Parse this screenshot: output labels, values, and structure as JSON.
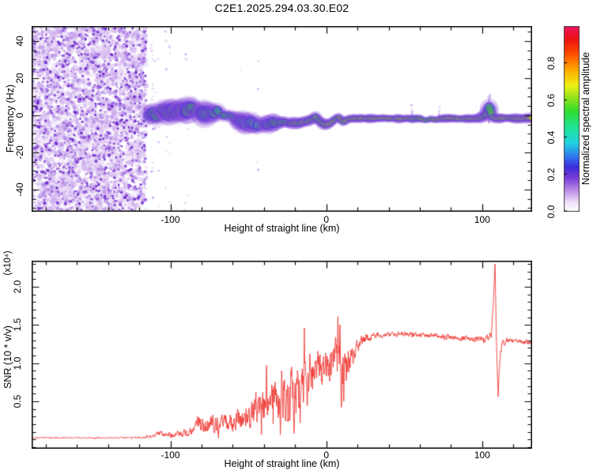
{
  "title": "C2E1.2025.294.03.30.E02",
  "chart_data": [
    {
      "type": "heatmap",
      "title": "C2E1.2025.294.03.30.E02",
      "xlabel": "Height of straight line (km)",
      "ylabel": "Frequency (Hz)",
      "xlim": [
        -189,
        132
      ],
      "ylim": [
        -52,
        48
      ],
      "grid": false,
      "xticks": [
        {
          "v": -100,
          "label": "-100"
        },
        {
          "v": 0,
          "label": "0"
        },
        {
          "v": 100,
          "label": "100"
        }
      ],
      "xminor_step": 20,
      "yticks": [
        {
          "v": -40,
          "label": "-40"
        },
        {
          "v": -20,
          "label": "-20"
        },
        {
          "v": 0,
          "label": "0"
        },
        {
          "v": 20,
          "label": "20"
        },
        {
          "v": 40,
          "label": "40"
        }
      ],
      "yminor_step": 5,
      "colorbar": {
        "label": "Normalized spectral amplitude",
        "range": [
          0,
          1
        ],
        "ticks": [
          {
            "v": 0,
            "label": "0.0"
          },
          {
            "v": 0.2,
            "label": "0.2"
          },
          {
            "v": 0.4,
            "label": "0.4"
          },
          {
            "v": 0.6,
            "label": "0.6"
          },
          {
            "v": 0.8,
            "label": "0.8"
          }
        ],
        "stops": [
          [
            0,
            "#ffffff"
          ],
          [
            0.05,
            "#efe2f9"
          ],
          [
            0.12,
            "#b685e6"
          ],
          [
            0.18,
            "#7a3fd8"
          ],
          [
            0.24,
            "#3b2bdb"
          ],
          [
            0.3,
            "#2f7bf0"
          ],
          [
            0.37,
            "#1fd3e0"
          ],
          [
            0.45,
            "#1fe39b"
          ],
          [
            0.54,
            "#2edc2e"
          ],
          [
            0.62,
            "#9ce41c"
          ],
          [
            0.68,
            "#eef012"
          ],
          [
            0.77,
            "#ffa400"
          ],
          [
            0.85,
            "#ff4c00"
          ],
          [
            0.93,
            "#ee1212"
          ],
          [
            1,
            "#f01264"
          ]
        ]
      },
      "noise": {
        "seed": 7,
        "dense_region": [
          -189,
          -115.5
        ],
        "palette": [
          "#ead9f7",
          "#cbaaec",
          "#a678e2",
          "#8244d6",
          "#5c16c6"
        ],
        "dense_counts": [
          1800,
          1100,
          700
        ],
        "sparse_p": [
          [
            -115,
            0.5
          ],
          [
            -100,
            0.34
          ],
          [
            -85,
            0.18
          ],
          [
            -70,
            0.1
          ],
          [
            -55,
            0.06
          ],
          [
            -40,
            0.04
          ],
          [
            -28,
            0.022
          ],
          [
            -10,
            0.012
          ],
          [
            40,
            0.008
          ],
          [
            60,
            0.05
          ],
          [
            90,
            0.05
          ],
          [
            95,
            0.03
          ],
          [
            112,
            0.03
          ],
          [
            132,
            0.008
          ]
        ]
      },
      "signal": {
        "seed": 11,
        "start_km": -114,
        "blobby_end_km": -30,
        "center": [
          [
            -114,
            -0.5
          ],
          [
            -111,
            1.5
          ],
          [
            -108,
            -0.5
          ],
          [
            -105,
            2.5
          ],
          [
            -102,
            1
          ],
          [
            -99,
            3.5
          ],
          [
            -96,
            1.5
          ],
          [
            -93,
            3.5
          ],
          [
            -90,
            2
          ],
          [
            -87,
            4
          ],
          [
            -84,
            1.5
          ],
          [
            -81,
            3
          ],
          [
            -78,
            1
          ],
          [
            -75,
            2.5
          ],
          [
            -72,
            0.5
          ],
          [
            -69,
            2
          ],
          [
            -66,
            0
          ],
          [
            -63,
            1
          ],
          [
            -60,
            -0.5
          ],
          [
            -57,
            -2
          ],
          [
            -54,
            -3.5
          ],
          [
            -51,
            -4.5
          ],
          [
            -48,
            -3.5
          ],
          [
            -45,
            -5
          ],
          [
            -42,
            -5.5
          ],
          [
            -39,
            -4.5
          ],
          [
            -36,
            -5
          ],
          [
            -33,
            -4
          ],
          [
            -30,
            -4
          ],
          [
            -27,
            -3.5
          ],
          [
            -24,
            -4.5
          ],
          [
            -21,
            -4
          ],
          [
            -18,
            -4.5
          ],
          [
            -15,
            -3.5
          ],
          [
            -12,
            -3
          ],
          [
            -9,
            -2
          ],
          [
            -7,
            -1
          ],
          [
            -4,
            -3.5
          ],
          [
            -1,
            -5
          ],
          [
            2,
            -4.5
          ],
          [
            5,
            -2.5
          ],
          [
            8,
            -1
          ],
          [
            11,
            -3.5
          ],
          [
            14,
            -2
          ],
          [
            18,
            -1.8
          ],
          [
            24,
            -1.8
          ],
          [
            32,
            -1.8
          ],
          [
            42,
            -1.8
          ],
          [
            52,
            -1.9
          ],
          [
            60,
            -2
          ],
          [
            64,
            -2.8
          ],
          [
            67,
            -2
          ],
          [
            70,
            -2.5
          ],
          [
            74,
            -1.8
          ],
          [
            80,
            -1.8
          ],
          [
            88,
            -1.9
          ],
          [
            94,
            -1.8
          ],
          [
            100,
            -1.2
          ],
          [
            103,
            1
          ],
          [
            104.5,
            4.5
          ],
          [
            105.5,
            2
          ],
          [
            106.5,
            -0.8
          ],
          [
            108,
            -1.6
          ],
          [
            114,
            -1.6
          ],
          [
            122,
            -1.6
          ],
          [
            132,
            -1.6
          ]
        ],
        "intensity": [
          [
            -114,
            0.6
          ],
          [
            -108,
            0.66
          ],
          [
            -102,
            0.7
          ],
          [
            -96,
            0.66
          ],
          [
            -90,
            0.7
          ],
          [
            -84,
            0.68
          ],
          [
            -78,
            0.7
          ],
          [
            -72,
            0.64
          ],
          [
            -66,
            0.6
          ],
          [
            -60,
            0.58
          ],
          [
            -54,
            0.55
          ],
          [
            -48,
            0.55
          ],
          [
            -42,
            0.57
          ],
          [
            -36,
            0.6
          ],
          [
            -30,
            0.68
          ],
          [
            -26,
            0.75
          ],
          [
            -22,
            0.82
          ],
          [
            -18,
            0.85
          ],
          [
            -14,
            0.82
          ],
          [
            -10,
            0.8
          ],
          [
            -6,
            0.75
          ],
          [
            -2,
            0.8
          ],
          [
            2,
            0.85
          ],
          [
            6,
            0.8
          ],
          [
            10,
            0.86
          ],
          [
            14,
            0.88
          ],
          [
            20,
            0.9
          ],
          [
            28,
            0.92
          ],
          [
            38,
            0.91
          ],
          [
            48,
            0.9
          ],
          [
            56,
            0.86
          ],
          [
            62,
            0.78
          ],
          [
            66,
            0.72
          ],
          [
            70,
            0.8
          ],
          [
            76,
            0.88
          ],
          [
            84,
            0.9
          ],
          [
            92,
            0.88
          ],
          [
            98,
            0.9
          ],
          [
            102,
            0.78
          ],
          [
            104.5,
            0.62
          ],
          [
            107,
            0.88
          ],
          [
            112,
            0.92
          ],
          [
            120,
            0.9
          ],
          [
            126,
            0.92
          ],
          [
            132,
            0.9
          ]
        ],
        "halfwidth_hz": [
          [
            -114,
            5
          ],
          [
            -105,
            5.8
          ],
          [
            -95,
            6
          ],
          [
            -85,
            5.8
          ],
          [
            -75,
            5.2
          ],
          [
            -65,
            5
          ],
          [
            -55,
            4.6
          ],
          [
            -45,
            4.2
          ],
          [
            -35,
            3.6
          ],
          [
            -28,
            3.2
          ],
          [
            -20,
            3
          ],
          [
            -12,
            3
          ],
          [
            -4,
            3
          ],
          [
            4,
            2.8
          ],
          [
            12,
            2.5
          ],
          [
            25,
            2.3
          ],
          [
            60,
            2.3
          ],
          [
            95,
            2.5
          ],
          [
            102,
            3.2
          ],
          [
            104.5,
            5.5
          ],
          [
            107,
            3
          ],
          [
            112,
            2.6
          ],
          [
            122,
            2.7
          ],
          [
            132,
            2.8
          ]
        ],
        "plumes": [
          [
            104.6,
            -4,
            11
          ],
          [
            103.8,
            -1,
            7
          ]
        ]
      }
    },
    {
      "type": "line",
      "xlabel": "Height of straight line (km)",
      "ylabel": "SNR (10 * v/v)",
      "ylabel_exp": "(x10⁴)",
      "xlim": [
        -189,
        132
      ],
      "ylim": [
        -0.12,
        2.34
      ],
      "grid": false,
      "line_color": "#ee3a35",
      "seed": 3,
      "xticks": [
        {
          "v": -100,
          "label": "-100"
        },
        {
          "v": 0,
          "label": "0"
        },
        {
          "v": 100,
          "label": "100"
        }
      ],
      "xminor_step": 20,
      "yticks": [
        {
          "v": 0.5,
          "label": "0.5"
        },
        {
          "v": 1.0,
          "label": "1.0"
        },
        {
          "v": 1.5,
          "label": "1.5"
        },
        {
          "v": 2.0,
          "label": "2.0"
        }
      ],
      "yminor_step": 0.1,
      "envelope": [
        [
          -189,
          0.025,
          0.012
        ],
        [
          -160,
          0.025,
          0.012
        ],
        [
          -135,
          0.025,
          0.013
        ],
        [
          -118,
          0.03,
          0.018
        ],
        [
          -111,
          0.05,
          0.03
        ],
        [
          -107,
          0.1,
          0.05
        ],
        [
          -104,
          0.06,
          0.03
        ],
        [
          -101,
          0.09,
          0.05
        ],
        [
          -98,
          0.07,
          0.04
        ],
        [
          -95,
          0.09,
          0.05
        ],
        [
          -92,
          0.08,
          0.05
        ],
        [
          -89,
          0.13,
          0.09
        ],
        [
          -86,
          0.1,
          0.07
        ],
        [
          -84,
          0.2,
          0.13
        ],
        [
          -82,
          0.27,
          0.16
        ],
        [
          -80,
          0.18,
          0.12
        ],
        [
          -78,
          0.28,
          0.17
        ],
        [
          -76,
          0.22,
          0.15
        ],
        [
          -74,
          0.3,
          0.18
        ],
        [
          -72,
          0.22,
          0.15
        ],
        [
          -70,
          0.27,
          0.17
        ],
        [
          -68,
          0.22,
          0.14
        ],
        [
          -66,
          0.25,
          0.16
        ],
        [
          -64,
          0.22,
          0.15
        ],
        [
          -62,
          0.27,
          0.17
        ],
        [
          -60,
          0.24,
          0.16
        ],
        [
          -58,
          0.26,
          0.16
        ],
        [
          -56,
          0.3,
          0.18
        ],
        [
          -54,
          0.26,
          0.17
        ],
        [
          -52,
          0.3,
          0.19
        ],
        [
          -50,
          0.33,
          0.2
        ],
        [
          -48,
          0.36,
          0.22
        ],
        [
          -46,
          0.42,
          0.26
        ],
        [
          -44,
          0.5,
          0.3
        ],
        [
          -42,
          0.44,
          0.28
        ],
        [
          -40,
          0.5,
          0.3
        ],
        [
          -38,
          0.62,
          0.36
        ],
        [
          -36,
          0.5,
          0.32
        ],
        [
          -34,
          0.56,
          0.34
        ],
        [
          -32,
          0.62,
          0.36
        ],
        [
          -30,
          0.56,
          0.35
        ],
        [
          -28,
          0.66,
          0.4
        ],
        [
          -26,
          0.58,
          0.38
        ],
        [
          -24,
          0.66,
          0.42
        ],
        [
          -22,
          0.72,
          0.44
        ],
        [
          -20,
          0.64,
          0.42
        ],
        [
          -18,
          0.74,
          0.44
        ],
        [
          -16,
          0.68,
          0.42
        ],
        [
          -14,
          0.85,
          0.42
        ],
        [
          -12,
          0.78,
          0.38
        ],
        [
          -10,
          0.84,
          0.36
        ],
        [
          -8,
          0.88,
          0.33
        ],
        [
          -6,
          0.94,
          0.3
        ],
        [
          -4,
          1.0,
          0.28
        ],
        [
          -2,
          0.96,
          0.3
        ],
        [
          0,
          1.02,
          0.27
        ],
        [
          2,
          1.06,
          0.26
        ],
        [
          4,
          1.1,
          0.28
        ],
        [
          6,
          1.16,
          0.32
        ],
        [
          8,
          1.25,
          0.3
        ],
        [
          10,
          0.92,
          0.4
        ],
        [
          12,
          0.9,
          0.36
        ],
        [
          14,
          1.05,
          0.28
        ],
        [
          16,
          1.14,
          0.2
        ],
        [
          18,
          1.2,
          0.16
        ],
        [
          20,
          1.26,
          0.12
        ],
        [
          23,
          1.3,
          0.09
        ],
        [
          27,
          1.34,
          0.06
        ],
        [
          32,
          1.37,
          0.045
        ],
        [
          40,
          1.385,
          0.04
        ],
        [
          50,
          1.39,
          0.04
        ],
        [
          60,
          1.38,
          0.04
        ],
        [
          70,
          1.37,
          0.045
        ],
        [
          78,
          1.35,
          0.045
        ],
        [
          86,
          1.34,
          0.05
        ],
        [
          92,
          1.33,
          0.045
        ],
        [
          98,
          1.32,
          0.05
        ],
        [
          103,
          1.33,
          0.06
        ],
        [
          106,
          1.38,
          0.08
        ],
        [
          107.4,
          1.9,
          0.02
        ],
        [
          108.2,
          2.32,
          0.01
        ],
        [
          109.2,
          1.2,
          0.05
        ],
        [
          110.2,
          0.56,
          0.03
        ],
        [
          111.2,
          1.05,
          0.1
        ],
        [
          112.5,
          1.25,
          0.08
        ],
        [
          115,
          1.3,
          0.05
        ],
        [
          120,
          1.31,
          0.04
        ],
        [
          126,
          1.29,
          0.04
        ],
        [
          132,
          1.28,
          0.045
        ]
      ],
      "spikes": [
        [
          -38.4,
          0.97
        ],
        [
          -28.6,
          0.9
        ],
        [
          -22.3,
          0.95
        ],
        [
          -14.2,
          1.46
        ],
        [
          7.5,
          1.61
        ],
        [
          8.7,
          1.5
        ]
      ],
      "dips": [
        [
          -29.5,
          0.06
        ],
        [
          -20.8,
          0.08
        ],
        [
          9.6,
          0.42
        ],
        [
          11.2,
          0.5
        ]
      ]
    }
  ]
}
